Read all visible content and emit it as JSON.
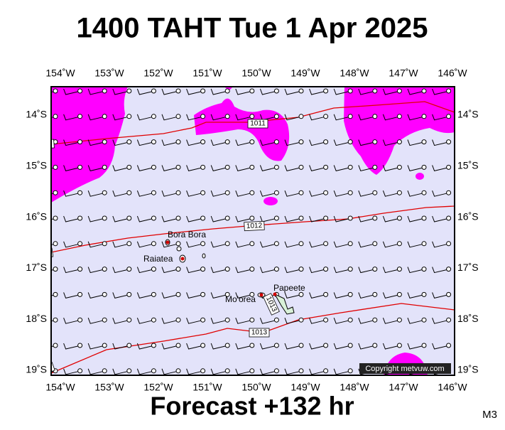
{
  "header": {
    "title": "1400 TAHT Tue 1 Apr 2025"
  },
  "map": {
    "lon_labels": [
      "154˚W",
      "153˚W",
      "152˚W",
      "151˚W",
      "150˚W",
      "149˚W",
      "148˚W",
      "147˚W",
      "146˚W"
    ],
    "lat_labels": [
      "14˚S",
      "15˚S",
      "16˚S",
      "17˚S",
      "18˚S",
      "19˚S"
    ],
    "isobars": [
      "1011",
      "1012",
      "1013"
    ],
    "places": [
      "Bora Bora",
      "Raiatea",
      "Mo'orea",
      "Papeete"
    ],
    "copyright": "Copyright metvuw.com"
  },
  "footer": {
    "forecast": "Forecast +132 hr",
    "model": "M3"
  }
}
